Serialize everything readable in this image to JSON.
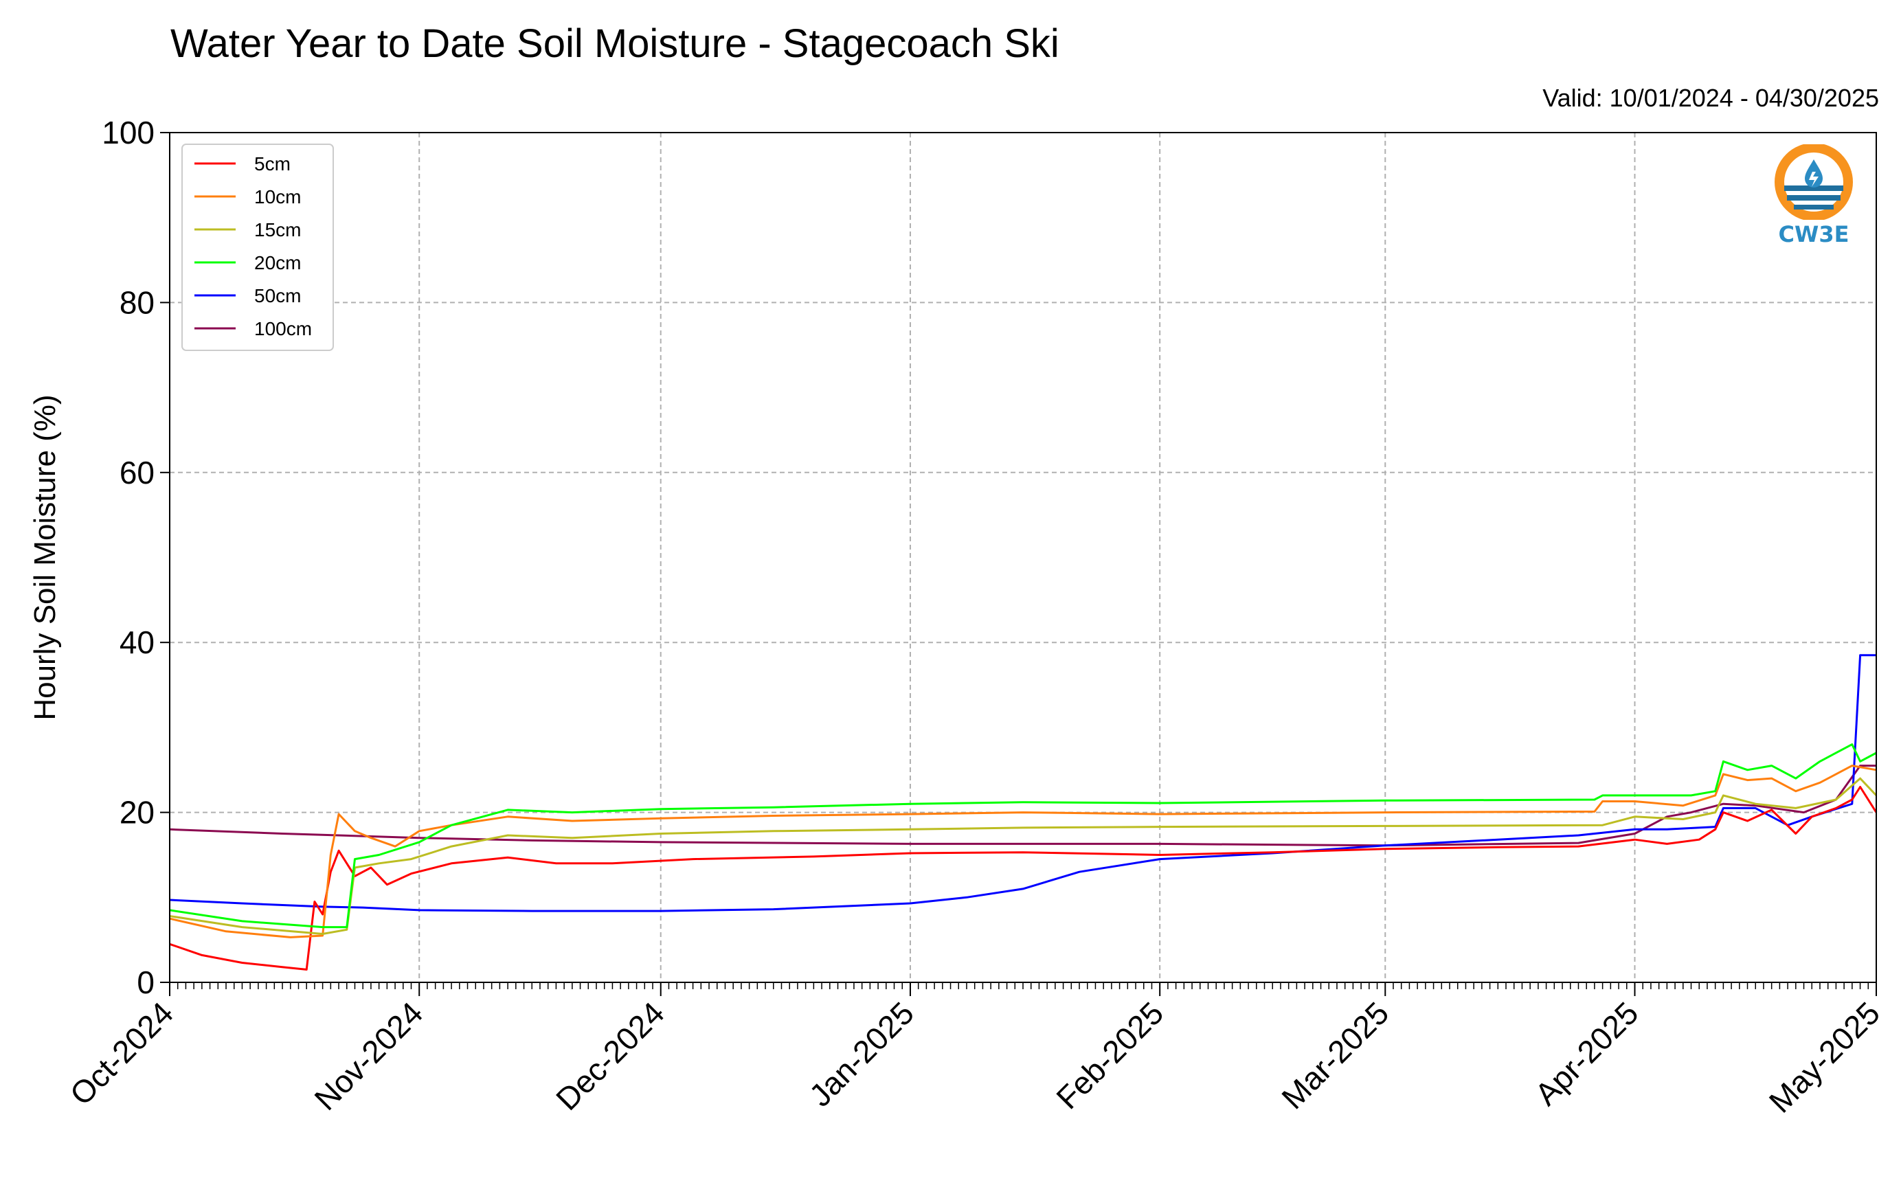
{
  "chart_data": {
    "type": "line",
    "title": "Water Year to Date Soil Moisture - Stagecoach Ski",
    "subtitle": "Valid: 10/01/2024 - 04/30/2025",
    "ylabel": "Hourly Soil Moisture (%)",
    "xlabel": "",
    "ylim": [
      0,
      100
    ],
    "yticks": [
      0,
      20,
      40,
      60,
      80,
      100
    ],
    "xlim": [
      "2024-10-01",
      "2025-05-01"
    ],
    "xticks": [
      {
        "date": "2024-10-01",
        "label": "Oct-2024"
      },
      {
        "date": "2024-11-01",
        "label": "Nov-2024"
      },
      {
        "date": "2024-12-01",
        "label": "Dec-2024"
      },
      {
        "date": "2025-01-01",
        "label": "Jan-2025"
      },
      {
        "date": "2025-02-01",
        "label": "Feb-2025"
      },
      {
        "date": "2025-03-01",
        "label": "Mar-2025"
      },
      {
        "date": "2025-04-01",
        "label": "Apr-2025"
      },
      {
        "date": "2025-05-01",
        "label": "May-2025"
      }
    ],
    "grid": true,
    "legend_position": "upper-left",
    "series": [
      {
        "name": "5cm",
        "color": "#ff0000",
        "points": [
          [
            "2024-10-01",
            4.5
          ],
          [
            "2024-10-05",
            3.2
          ],
          [
            "2024-10-10",
            2.3
          ],
          [
            "2024-10-15",
            1.8
          ],
          [
            "2024-10-18",
            1.5
          ],
          [
            "2024-10-19",
            9.5
          ],
          [
            "2024-10-20",
            8.0
          ],
          [
            "2024-10-21",
            13.0
          ],
          [
            "2024-10-22",
            15.5
          ],
          [
            "2024-10-24",
            12.5
          ],
          [
            "2024-10-26",
            13.5
          ],
          [
            "2024-10-28",
            11.5
          ],
          [
            "2024-10-31",
            12.8
          ],
          [
            "2024-11-05",
            14.0
          ],
          [
            "2024-11-12",
            14.7
          ],
          [
            "2024-11-18",
            14.0
          ],
          [
            "2024-11-25",
            14.0
          ],
          [
            "2024-12-05",
            14.5
          ],
          [
            "2024-12-20",
            14.8
          ],
          [
            "2025-01-01",
            15.2
          ],
          [
            "2025-01-15",
            15.3
          ],
          [
            "2025-02-01",
            15.0
          ],
          [
            "2025-02-15",
            15.3
          ],
          [
            "2025-03-01",
            15.7
          ],
          [
            "2025-03-15",
            15.9
          ],
          [
            "2025-03-25",
            16.0
          ],
          [
            "2025-04-01",
            16.8
          ],
          [
            "2025-04-05",
            16.3
          ],
          [
            "2025-04-09",
            16.8
          ],
          [
            "2025-04-11",
            18.0
          ],
          [
            "2025-04-12",
            20.0
          ],
          [
            "2025-04-15",
            19.0
          ],
          [
            "2025-04-18",
            20.3
          ],
          [
            "2025-04-21",
            17.5
          ],
          [
            "2025-04-23",
            19.5
          ],
          [
            "2025-04-26",
            20.5
          ],
          [
            "2025-04-28",
            21.5
          ],
          [
            "2025-04-29",
            23.0
          ],
          [
            "2025-05-01",
            20.0
          ]
        ]
      },
      {
        "name": "10cm",
        "color": "#ff7f0e",
        "points": [
          [
            "2024-10-01",
            7.5
          ],
          [
            "2024-10-08",
            6.0
          ],
          [
            "2024-10-16",
            5.3
          ],
          [
            "2024-10-20",
            5.5
          ],
          [
            "2024-10-21",
            15.0
          ],
          [
            "2024-10-22",
            19.8
          ],
          [
            "2024-10-24",
            17.8
          ],
          [
            "2024-10-26",
            17.0
          ],
          [
            "2024-10-29",
            16.0
          ],
          [
            "2024-11-01",
            17.8
          ],
          [
            "2024-11-05",
            18.5
          ],
          [
            "2024-11-12",
            19.5
          ],
          [
            "2024-11-20",
            19.0
          ],
          [
            "2024-12-01",
            19.3
          ],
          [
            "2024-12-15",
            19.6
          ],
          [
            "2025-01-01",
            19.8
          ],
          [
            "2025-01-15",
            20.0
          ],
          [
            "2025-02-01",
            19.8
          ],
          [
            "2025-03-01",
            20.0
          ],
          [
            "2025-03-27",
            20.1
          ],
          [
            "2025-03-28",
            21.3
          ],
          [
            "2025-04-01",
            21.3
          ],
          [
            "2025-04-07",
            20.8
          ],
          [
            "2025-04-11",
            22.0
          ],
          [
            "2025-04-12",
            24.5
          ],
          [
            "2025-04-15",
            23.8
          ],
          [
            "2025-04-18",
            24.0
          ],
          [
            "2025-04-21",
            22.5
          ],
          [
            "2025-04-24",
            23.5
          ],
          [
            "2025-04-28",
            25.5
          ],
          [
            "2025-05-01",
            25.0
          ]
        ]
      },
      {
        "name": "15cm",
        "color": "#bcbd22",
        "points": [
          [
            "2024-10-01",
            7.8
          ],
          [
            "2024-10-10",
            6.5
          ],
          [
            "2024-10-20",
            5.7
          ],
          [
            "2024-10-23",
            6.2
          ],
          [
            "2024-10-24",
            13.5
          ],
          [
            "2024-10-27",
            14.0
          ],
          [
            "2024-10-31",
            14.5
          ],
          [
            "2024-11-05",
            16.0
          ],
          [
            "2024-11-12",
            17.3
          ],
          [
            "2024-11-20",
            17.0
          ],
          [
            "2024-12-01",
            17.5
          ],
          [
            "2024-12-15",
            17.8
          ],
          [
            "2025-01-01",
            18.0
          ],
          [
            "2025-01-15",
            18.2
          ],
          [
            "2025-02-01",
            18.3
          ],
          [
            "2025-03-01",
            18.4
          ],
          [
            "2025-03-28",
            18.5
          ],
          [
            "2025-04-01",
            19.5
          ],
          [
            "2025-04-07",
            19.2
          ],
          [
            "2025-04-11",
            20.0
          ],
          [
            "2025-04-12",
            22.0
          ],
          [
            "2025-04-16",
            21.0
          ],
          [
            "2025-04-21",
            20.5
          ],
          [
            "2025-04-26",
            21.5
          ],
          [
            "2025-04-29",
            24.0
          ],
          [
            "2025-05-01",
            22.0
          ]
        ]
      },
      {
        "name": "20cm",
        "color": "#00ff00",
        "points": [
          [
            "2024-10-01",
            8.5
          ],
          [
            "2024-10-10",
            7.2
          ],
          [
            "2024-10-20",
            6.5
          ],
          [
            "2024-10-23",
            6.5
          ],
          [
            "2024-10-24",
            14.5
          ],
          [
            "2024-10-27",
            15.0
          ],
          [
            "2024-11-01",
            16.5
          ],
          [
            "2024-11-05",
            18.5
          ],
          [
            "2024-11-12",
            20.3
          ],
          [
            "2024-11-20",
            20.0
          ],
          [
            "2024-12-01",
            20.4
          ],
          [
            "2024-12-15",
            20.6
          ],
          [
            "2025-01-01",
            21.0
          ],
          [
            "2025-01-15",
            21.2
          ],
          [
            "2025-02-01",
            21.1
          ],
          [
            "2025-03-01",
            21.4
          ],
          [
            "2025-03-27",
            21.5
          ],
          [
            "2025-03-28",
            22.0
          ],
          [
            "2025-04-01",
            22.0
          ],
          [
            "2025-04-08",
            22.0
          ],
          [
            "2025-04-11",
            22.5
          ],
          [
            "2025-04-12",
            26.0
          ],
          [
            "2025-04-15",
            25.0
          ],
          [
            "2025-04-18",
            25.5
          ],
          [
            "2025-04-21",
            24.0
          ],
          [
            "2025-04-24",
            26.0
          ],
          [
            "2025-04-28",
            28.0
          ],
          [
            "2025-04-29",
            26.0
          ],
          [
            "2025-05-01",
            27.0
          ]
        ]
      },
      {
        "name": "50cm",
        "color": "#0000ff",
        "points": [
          [
            "2024-10-01",
            9.7
          ],
          [
            "2024-10-10",
            9.3
          ],
          [
            "2024-10-20",
            8.9
          ],
          [
            "2024-10-25",
            8.8
          ],
          [
            "2024-11-01",
            8.5
          ],
          [
            "2024-11-15",
            8.4
          ],
          [
            "2024-12-01",
            8.4
          ],
          [
            "2024-12-15",
            8.6
          ],
          [
            "2025-01-01",
            9.3
          ],
          [
            "2025-01-08",
            10.0
          ],
          [
            "2025-01-15",
            11.0
          ],
          [
            "2025-01-22",
            13.0
          ],
          [
            "2025-02-01",
            14.5
          ],
          [
            "2025-02-15",
            15.2
          ],
          [
            "2025-03-01",
            16.1
          ],
          [
            "2025-03-15",
            16.8
          ],
          [
            "2025-03-25",
            17.3
          ],
          [
            "2025-04-01",
            18.0
          ],
          [
            "2025-04-05",
            18.0
          ],
          [
            "2025-04-11",
            18.3
          ],
          [
            "2025-04-12",
            20.5
          ],
          [
            "2025-04-16",
            20.5
          ],
          [
            "2025-04-20",
            18.5
          ],
          [
            "2025-04-23",
            19.5
          ],
          [
            "2025-04-28",
            21.0
          ],
          [
            "2025-04-29",
            38.5
          ],
          [
            "2025-05-01",
            38.5
          ]
        ]
      },
      {
        "name": "100cm",
        "color": "#8b0a50",
        "points": [
          [
            "2024-10-01",
            18.0
          ],
          [
            "2024-10-15",
            17.5
          ],
          [
            "2024-11-01",
            17.0
          ],
          [
            "2024-11-15",
            16.7
          ],
          [
            "2024-12-01",
            16.5
          ],
          [
            "2025-01-01",
            16.3
          ],
          [
            "2025-02-01",
            16.3
          ],
          [
            "2025-03-01",
            16.1
          ],
          [
            "2025-03-25",
            16.4
          ],
          [
            "2025-04-01",
            17.5
          ],
          [
            "2025-04-05",
            19.5
          ],
          [
            "2025-04-08",
            20.0
          ],
          [
            "2025-04-12",
            21.0
          ],
          [
            "2025-04-16",
            20.8
          ],
          [
            "2025-04-22",
            20.0
          ],
          [
            "2025-04-26",
            21.5
          ],
          [
            "2025-04-29",
            25.5
          ],
          [
            "2025-05-01",
            25.5
          ]
        ]
      }
    ]
  },
  "logo": {
    "text": "CW3E",
    "ring_color": "#f7931e",
    "wave_color": "#1f6f9e",
    "text_color": "#2b8cc4"
  }
}
